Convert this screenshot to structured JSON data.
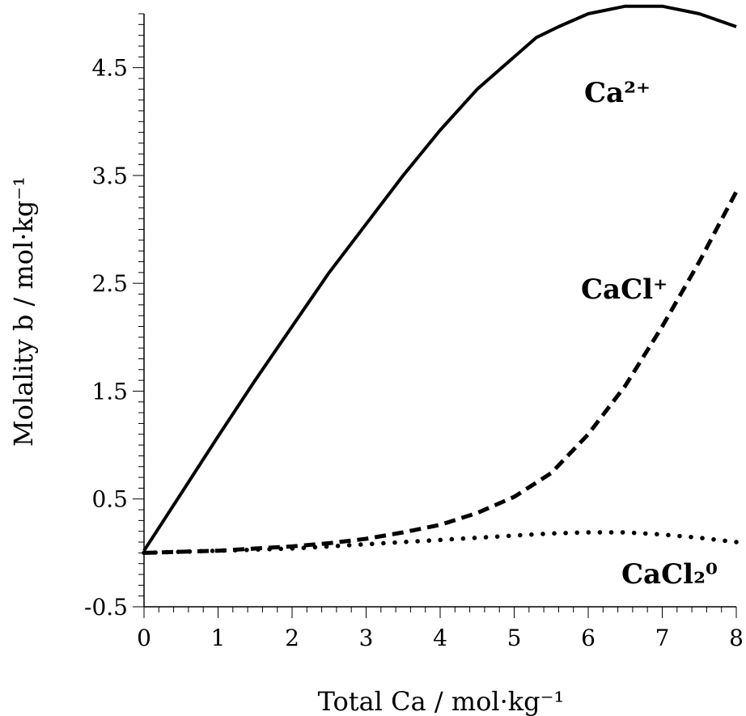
{
  "chart_data": {
    "type": "line",
    "xlabel": "Total Ca / mol·kg⁻¹",
    "ylabel": "Molality b / mol·kg⁻¹",
    "xlim": [
      0,
      8
    ],
    "ylim": [
      -0.5,
      5.0
    ],
    "x_ticks": [
      0,
      1,
      2,
      3,
      4,
      5,
      6,
      7,
      8
    ],
    "x_tick_labels": [
      "0",
      "1",
      "2",
      "3",
      "4",
      "5",
      "6",
      "7",
      "8"
    ],
    "y_ticks": [
      -0.5,
      0.5,
      1.5,
      2.5,
      3.5,
      4.5
    ],
    "y_tick_labels": [
      "-0.5",
      "0.5",
      "1.5",
      "2.5",
      "3.5",
      "4.5"
    ],
    "grid": false,
    "series": [
      {
        "name": "Ca²⁺",
        "line_style": "solid",
        "x": [
          0,
          0.5,
          1,
          1.5,
          2,
          2.5,
          3,
          3.5,
          4,
          4.5,
          5,
          5.3,
          5.6,
          6,
          6.5,
          7,
          7.5,
          8
        ],
        "y": [
          0.02,
          0.55,
          1.08,
          1.6,
          2.1,
          2.6,
          3.05,
          3.5,
          3.92,
          4.3,
          4.6,
          4.78,
          4.88,
          5.0,
          5.07,
          5.07,
          5.0,
          4.88
        ]
      },
      {
        "name": "CaCl⁺",
        "line_style": "dashed",
        "x": [
          0,
          0.5,
          1,
          1.5,
          2,
          2.5,
          3,
          3.5,
          4,
          4.5,
          5,
          5.5,
          6,
          6.5,
          7,
          7.5,
          8
        ],
        "y": [
          0.0,
          0.01,
          0.02,
          0.04,
          0.06,
          0.09,
          0.13,
          0.19,
          0.26,
          0.37,
          0.52,
          0.74,
          1.1,
          1.55,
          2.1,
          2.7,
          3.35
        ]
      },
      {
        "name": "CaCl₂⁰",
        "line_style": "dotted",
        "x": [
          0,
          0.5,
          1,
          1.5,
          2,
          2.5,
          3,
          3.5,
          4,
          4.5,
          5,
          5.5,
          6,
          6.5,
          7,
          7.5,
          8
        ],
        "y": [
          0.0,
          0.01,
          0.02,
          0.03,
          0.04,
          0.06,
          0.08,
          0.1,
          0.12,
          0.14,
          0.16,
          0.18,
          0.19,
          0.19,
          0.17,
          0.14,
          0.1
        ]
      }
    ],
    "labels": [
      {
        "text": "Ca²⁺",
        "series": 0
      },
      {
        "text": "CaCl⁺",
        "series": 1
      },
      {
        "text": "CaCl₂⁰",
        "series": 2
      }
    ]
  }
}
